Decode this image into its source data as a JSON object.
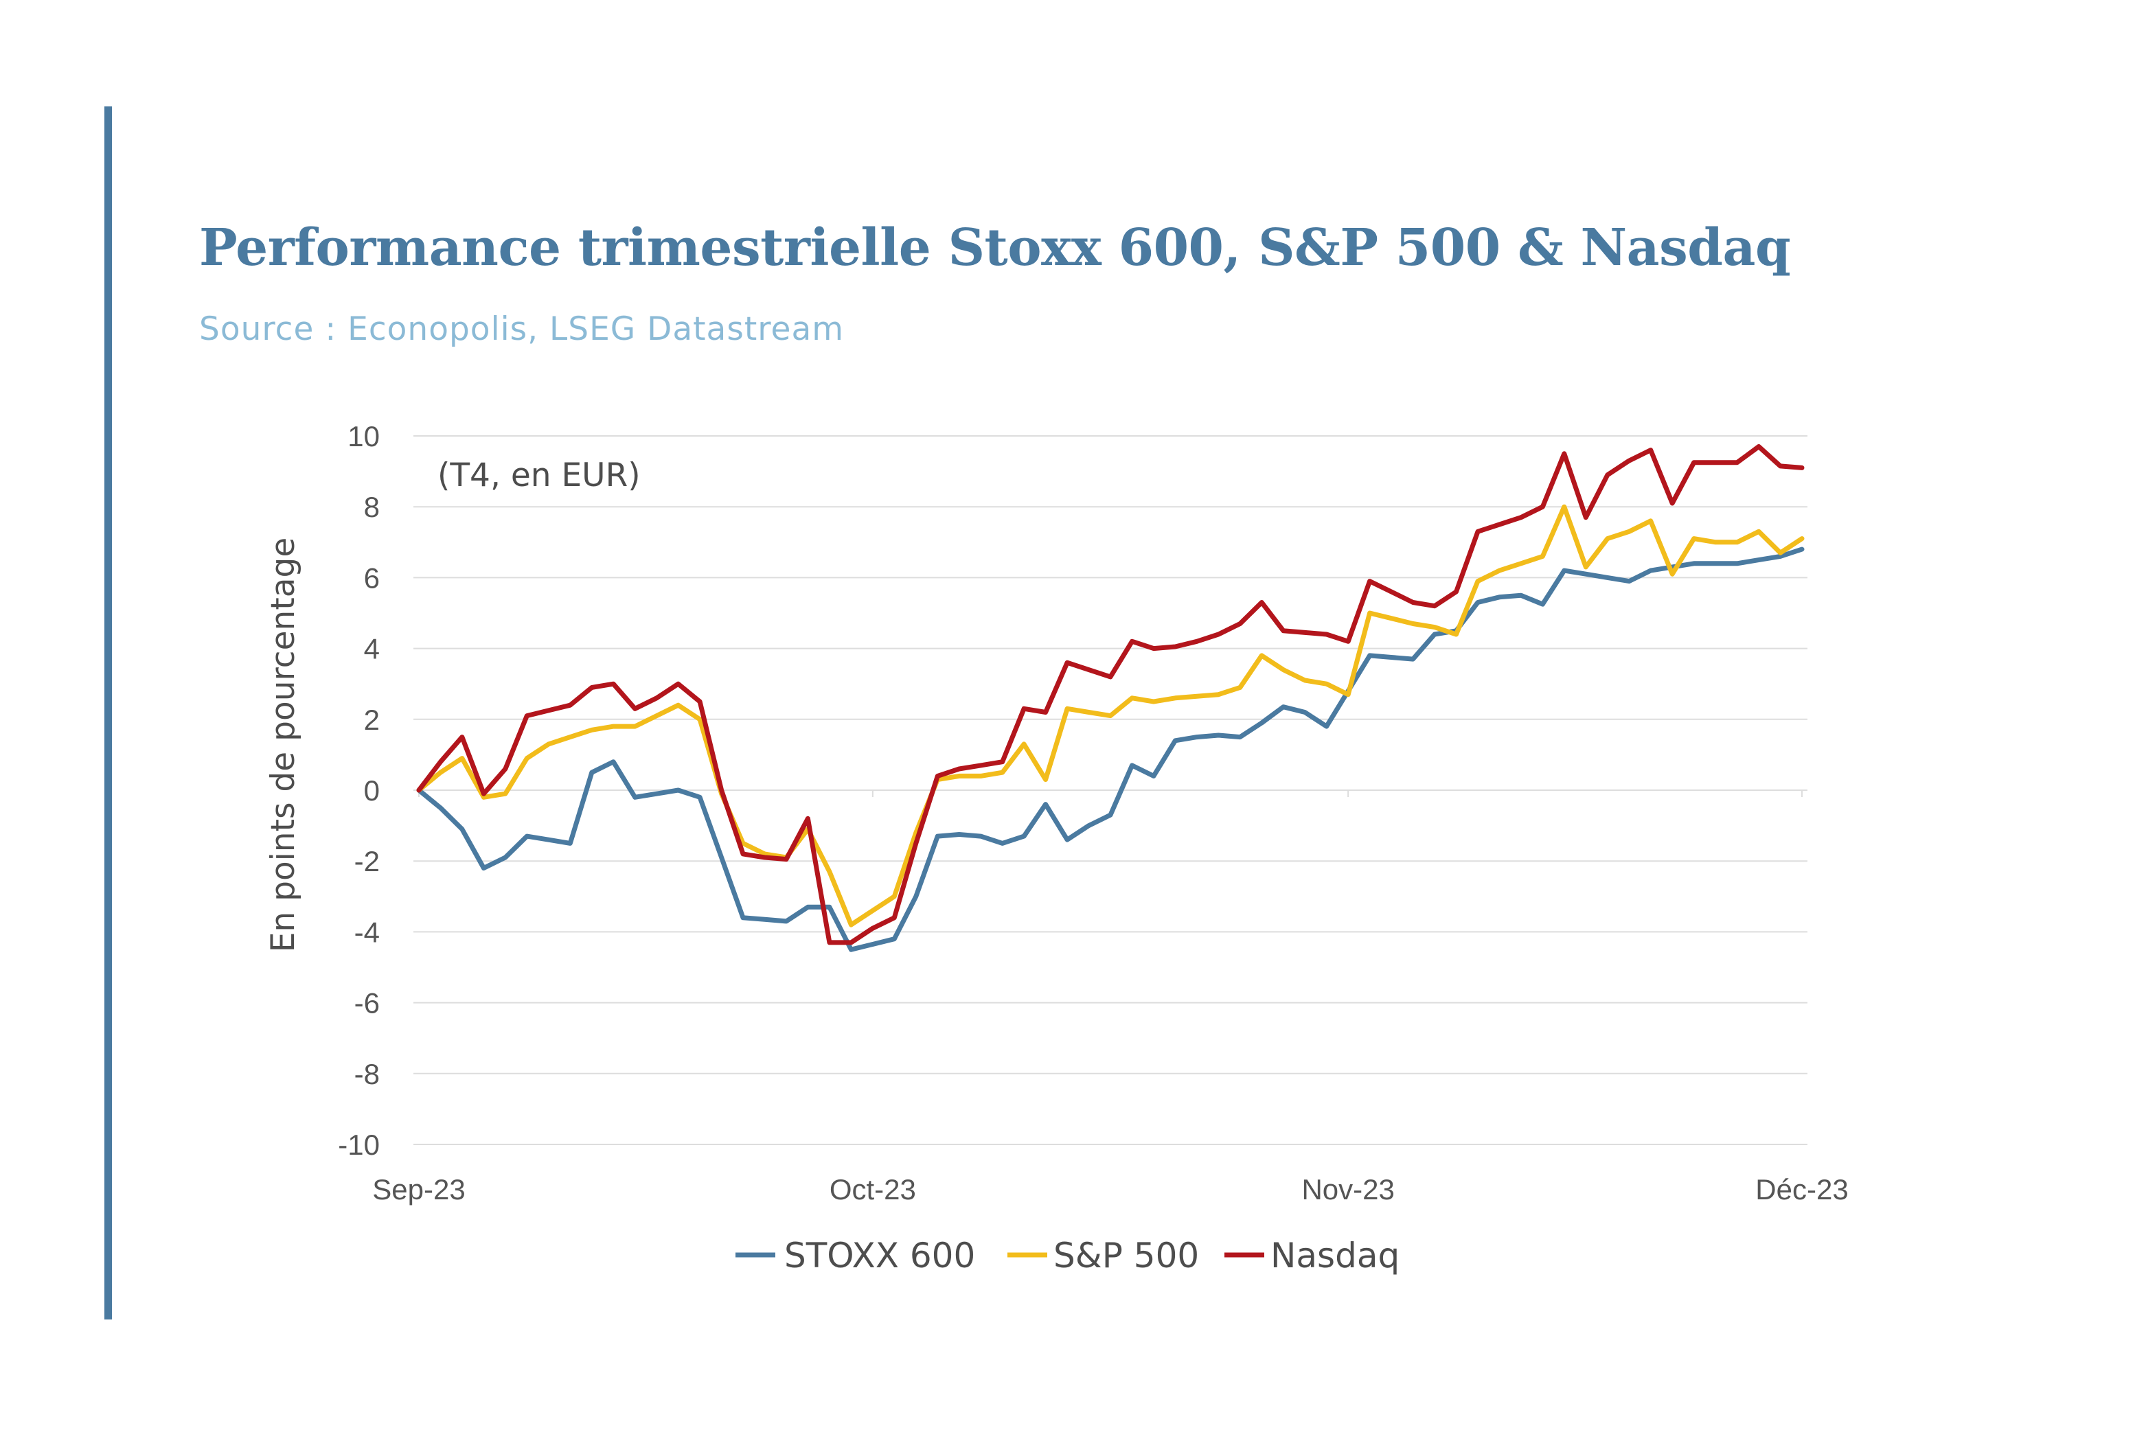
{
  "title": "Performance trimestrielle Stoxx 600, S&P 500 & Nasdaq",
  "subtitle": "Source : Econopolis, LSEG Datastream",
  "colors": {
    "accent": "#4a7aa0",
    "subtitle": "#8bbad6",
    "grid": "#dddddd"
  },
  "chart_data": {
    "type": "line",
    "annotation": "(T4, en EUR)",
    "ylabel": "En points de pourcentage",
    "xlabel": "",
    "ylim": [
      -10,
      10
    ],
    "yticks": [
      10,
      8,
      6,
      4,
      2,
      0,
      -2,
      -4,
      -6,
      -8,
      -10
    ],
    "ytick_labels": [
      "10",
      "8",
      "6",
      "4",
      "2",
      "0",
      "-2",
      "-4",
      "-6",
      "-8",
      "-10"
    ],
    "xlim": [
      0,
      64
    ],
    "xticks": [
      0,
      21,
      43,
      64
    ],
    "xtick_labels": [
      "Sep-23",
      "Oct-23",
      "Nov-23",
      "Déc-23"
    ],
    "grid": true,
    "legend_position": "bottom",
    "x": [
      0,
      1,
      2,
      3,
      4,
      5,
      6,
      7,
      8,
      9,
      10,
      11,
      12,
      13,
      14,
      15,
      16,
      17,
      18,
      19,
      20,
      21,
      22,
      23,
      24,
      25,
      26,
      27,
      28,
      29,
      30,
      31,
      32,
      33,
      34,
      35,
      36,
      37,
      38,
      39,
      40,
      41,
      42,
      43,
      44,
      45,
      46,
      47,
      48,
      49,
      50,
      51,
      52,
      53,
      54,
      55,
      56,
      57,
      58,
      59,
      60,
      61,
      62,
      63,
      64
    ],
    "series": [
      {
        "name": "STOXX 600",
        "color": "#4a7aa0",
        "values": [
          0,
          -0.5,
          -1.1,
          -2.2,
          -1.9,
          -1.3,
          -1.4,
          -1.5,
          0.5,
          0.8,
          -0.2,
          -0.1,
          0,
          -0.2,
          -1.9,
          -3.6,
          -3.65,
          -3.7,
          -3.3,
          -3.3,
          -4.5,
          -4.35,
          -4.2,
          -3.0,
          -1.3,
          -1.25,
          -1.3,
          -1.5,
          -1.3,
          -0.4,
          -1.4,
          -1.0,
          -0.7,
          0.7,
          0.4,
          1.4,
          1.5,
          1.55,
          1.5,
          1.9,
          2.35,
          2.2,
          1.8,
          2.8,
          3.8,
          3.75,
          3.7,
          4.4,
          4.5,
          5.3,
          5.45,
          5.5,
          5.25,
          6.2,
          6.1,
          6.0,
          5.9,
          6.2,
          6.3,
          6.4,
          6.4,
          6.4,
          6.5,
          6.6,
          6.8
        ]
      },
      {
        "name": "S&P 500",
        "color": "#f2bc1b",
        "values": [
          0,
          0.5,
          0.9,
          -0.2,
          -0.1,
          0.9,
          1.3,
          1.5,
          1.7,
          1.8,
          1.8,
          2.1,
          2.4,
          2.0,
          -0.1,
          -1.5,
          -1.8,
          -1.9,
          -1.1,
          -2.3,
          -3.8,
          -3.4,
          -3.0,
          -1.2,
          0.3,
          0.4,
          0.4,
          0.5,
          1.3,
          0.3,
          2.3,
          2.2,
          2.1,
          2.6,
          2.5,
          2.6,
          2.65,
          2.7,
          2.9,
          3.8,
          3.4,
          3.1,
          3.0,
          2.7,
          5.0,
          4.85,
          4.7,
          4.6,
          4.4,
          5.9,
          6.2,
          6.4,
          6.6,
          8.0,
          6.3,
          7.1,
          7.3,
          7.6,
          6.1,
          7.1,
          7.0,
          7.0,
          7.3,
          6.7,
          7.1
        ]
      },
      {
        "name": "Nasdaq",
        "color": "#b3151c",
        "values": [
          0,
          0.8,
          1.5,
          -0.1,
          0.6,
          2.1,
          2.25,
          2.4,
          2.9,
          3.0,
          2.3,
          2.6,
          3.0,
          2.5,
          0,
          -1.8,
          -1.9,
          -1.95,
          -0.8,
          -4.3,
          -4.3,
          -3.9,
          -3.6,
          -1.5,
          0.4,
          0.6,
          0.7,
          0.8,
          2.3,
          2.2,
          3.6,
          3.4,
          3.2,
          4.2,
          4.0,
          4.05,
          4.2,
          4.4,
          4.7,
          5.3,
          4.5,
          4.45,
          4.4,
          4.2,
          5.9,
          5.6,
          5.3,
          5.2,
          5.6,
          7.3,
          7.5,
          7.7,
          8.0,
          9.5,
          7.7,
          8.9,
          9.3,
          9.6,
          8.1,
          9.25,
          9.25,
          9.25,
          9.7,
          9.15,
          9.1
        ]
      }
    ]
  }
}
